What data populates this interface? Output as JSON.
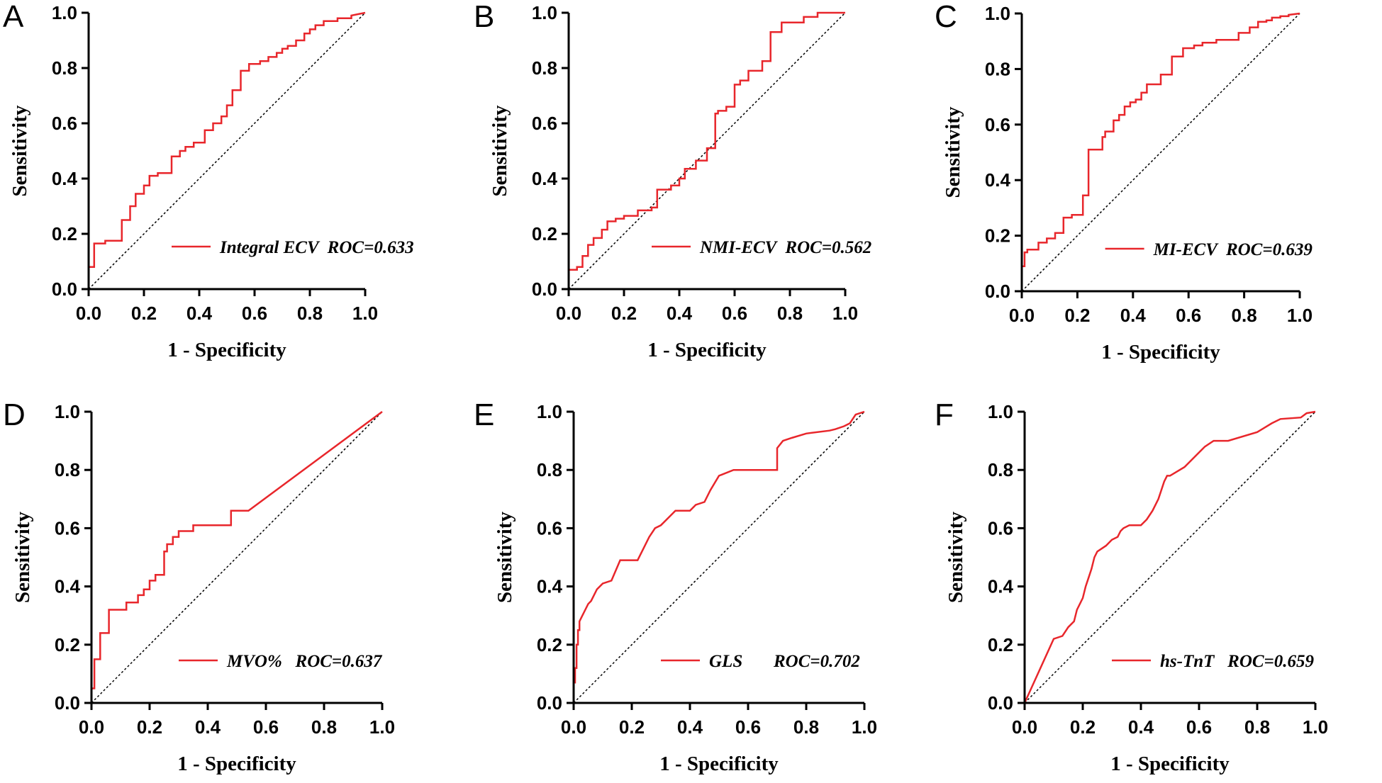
{
  "chart_data": [
    {
      "panel": "A",
      "type": "line",
      "title": "",
      "xlabel": "1 - Specificity",
      "ylabel": "Sensitivity",
      "xlim": [
        0,
        1
      ],
      "ylim": [
        0,
        1
      ],
      "xticks": [
        "0.0",
        "0.2",
        "0.4",
        "0.6",
        "0.8",
        "1.0"
      ],
      "yticks": [
        "0.0",
        "0.2",
        "0.4",
        "0.6",
        "0.8",
        "1.0"
      ],
      "legend": {
        "label": "Integral ECV  ROC=0.633",
        "placement": "bottom-right"
      },
      "series": [
        {
          "name": "Integral ECV",
          "color": "#e8262b",
          "x": [
            0,
            0,
            0.02,
            0.02,
            0.06,
            0.06,
            0.12,
            0.12,
            0.15,
            0.15,
            0.17,
            0.17,
            0.2,
            0.2,
            0.22,
            0.22,
            0.25,
            0.25,
            0.3,
            0.3,
            0.33,
            0.33,
            0.35,
            0.35,
            0.38,
            0.38,
            0.42,
            0.42,
            0.45,
            0.45,
            0.48,
            0.48,
            0.5,
            0.5,
            0.52,
            0.52,
            0.55,
            0.55,
            0.58,
            0.58,
            0.62,
            0.62,
            0.65,
            0.65,
            0.68,
            0.68,
            0.7,
            0.7,
            0.72,
            0.72,
            0.75,
            0.75,
            0.78,
            0.78,
            0.8,
            0.8,
            0.82,
            0.82,
            0.85,
            0.85,
            0.9,
            0.9,
            0.95,
            0.95,
            1.0
          ],
          "y": [
            0,
            0.08,
            0.08,
            0.165,
            0.165,
            0.175,
            0.175,
            0.25,
            0.25,
            0.3,
            0.3,
            0.345,
            0.345,
            0.375,
            0.375,
            0.41,
            0.41,
            0.42,
            0.42,
            0.48,
            0.48,
            0.5,
            0.5,
            0.515,
            0.515,
            0.53,
            0.53,
            0.575,
            0.575,
            0.6,
            0.6,
            0.625,
            0.625,
            0.665,
            0.665,
            0.72,
            0.72,
            0.79,
            0.79,
            0.815,
            0.815,
            0.825,
            0.825,
            0.84,
            0.84,
            0.855,
            0.855,
            0.87,
            0.87,
            0.88,
            0.88,
            0.9,
            0.9,
            0.925,
            0.925,
            0.94,
            0.94,
            0.955,
            0.955,
            0.97,
            0.97,
            0.98,
            0.98,
            0.99,
            1.0
          ]
        }
      ]
    },
    {
      "panel": "B",
      "type": "line",
      "title": "",
      "xlabel": "1 - Specificity",
      "ylabel": "Sensitivity",
      "xlim": [
        0,
        1
      ],
      "ylim": [
        0,
        1
      ],
      "xticks": [
        "0.0",
        "0.2",
        "0.4",
        "0.6",
        "0.8",
        "1.0"
      ],
      "yticks": [
        "0.0",
        "0.2",
        "0.4",
        "0.6",
        "0.8",
        "1.0"
      ],
      "legend": {
        "label": "NMI-ECV  ROC=0.562",
        "placement": "bottom-right"
      },
      "series": [
        {
          "name": "NMI-ECV",
          "color": "#e8262b",
          "x": [
            0,
            0,
            0.03,
            0.03,
            0.05,
            0.05,
            0.07,
            0.07,
            0.09,
            0.09,
            0.12,
            0.12,
            0.14,
            0.14,
            0.17,
            0.17,
            0.2,
            0.2,
            0.25,
            0.25,
            0.3,
            0.3,
            0.32,
            0.32,
            0.37,
            0.37,
            0.4,
            0.4,
            0.42,
            0.42,
            0.46,
            0.46,
            0.5,
            0.5,
            0.53,
            0.53,
            0.54,
            0.54,
            0.57,
            0.57,
            0.6,
            0.6,
            0.62,
            0.62,
            0.65,
            0.65,
            0.7,
            0.7,
            0.73,
            0.73,
            0.77,
            0.77,
            0.85,
            0.85,
            0.9,
            0.9,
            1.0
          ],
          "y": [
            0,
            0.07,
            0.07,
            0.08,
            0.08,
            0.12,
            0.12,
            0.16,
            0.16,
            0.185,
            0.185,
            0.215,
            0.215,
            0.245,
            0.245,
            0.255,
            0.255,
            0.265,
            0.265,
            0.285,
            0.285,
            0.295,
            0.295,
            0.36,
            0.36,
            0.375,
            0.375,
            0.4,
            0.4,
            0.435,
            0.435,
            0.465,
            0.465,
            0.51,
            0.51,
            0.635,
            0.635,
            0.645,
            0.645,
            0.66,
            0.66,
            0.74,
            0.74,
            0.755,
            0.755,
            0.79,
            0.79,
            0.825,
            0.825,
            0.93,
            0.93,
            0.965,
            0.965,
            0.985,
            0.985,
            1.0,
            1.0
          ]
        }
      ]
    },
    {
      "panel": "C",
      "type": "line",
      "title": "",
      "xlabel": "1 - Specificity",
      "ylabel": "Sensitivity",
      "xlim": [
        0,
        1
      ],
      "ylim": [
        0,
        1
      ],
      "xticks": [
        "0.0",
        "0.2",
        "0.4",
        "0.6",
        "0.8",
        "1.0"
      ],
      "yticks": [
        "0.0",
        "0.2",
        "0.4",
        "0.6",
        "0.8",
        "1.0"
      ],
      "legend": {
        "label": "MI-ECV  ROC=0.639",
        "placement": "bottom-right"
      },
      "series": [
        {
          "name": "MI-ECV",
          "color": "#e8262b",
          "x": [
            0,
            0,
            0.01,
            0.01,
            0.02,
            0.02,
            0.06,
            0.06,
            0.09,
            0.09,
            0.12,
            0.12,
            0.15,
            0.15,
            0.18,
            0.18,
            0.22,
            0.22,
            0.24,
            0.24,
            0.29,
            0.29,
            0.3,
            0.3,
            0.33,
            0.33,
            0.35,
            0.35,
            0.37,
            0.37,
            0.39,
            0.39,
            0.41,
            0.41,
            0.43,
            0.43,
            0.45,
            0.45,
            0.5,
            0.5,
            0.54,
            0.54,
            0.58,
            0.58,
            0.62,
            0.62,
            0.65,
            0.65,
            0.7,
            0.7,
            0.78,
            0.78,
            0.82,
            0.82,
            0.85,
            0.85,
            0.88,
            0.88,
            0.9,
            0.9,
            0.93,
            0.93,
            0.96,
            0.96,
            1.0
          ],
          "y": [
            0,
            0.09,
            0.09,
            0.14,
            0.14,
            0.15,
            0.15,
            0.175,
            0.175,
            0.19,
            0.19,
            0.21,
            0.21,
            0.265,
            0.265,
            0.275,
            0.275,
            0.345,
            0.345,
            0.51,
            0.51,
            0.555,
            0.555,
            0.575,
            0.575,
            0.615,
            0.615,
            0.635,
            0.635,
            0.665,
            0.665,
            0.68,
            0.68,
            0.69,
            0.69,
            0.715,
            0.715,
            0.745,
            0.745,
            0.78,
            0.78,
            0.845,
            0.845,
            0.875,
            0.875,
            0.885,
            0.885,
            0.895,
            0.895,
            0.905,
            0.905,
            0.93,
            0.93,
            0.95,
            0.95,
            0.97,
            0.97,
            0.975,
            0.975,
            0.985,
            0.985,
            0.99,
            0.99,
            0.995,
            1.0
          ]
        }
      ]
    },
    {
      "panel": "D",
      "type": "line",
      "title": "",
      "xlabel": "1 - Specificity",
      "ylabel": "Sensitivity",
      "xlim": [
        0,
        1
      ],
      "ylim": [
        0,
        1
      ],
      "xticks": [
        "0.0",
        "0.2",
        "0.4",
        "0.6",
        "0.8",
        "1.0"
      ],
      "yticks": [
        "0.0",
        "0.2",
        "0.4",
        "0.6",
        "0.8",
        "1.0"
      ],
      "legend": {
        "label": "MVO%   ROC=0.637",
        "placement": "bottom-right"
      },
      "series": [
        {
          "name": "MVO%",
          "color": "#e8262b",
          "x": [
            0,
            0,
            0.01,
            0.01,
            0.03,
            0.03,
            0.06,
            0.06,
            0.12,
            0.12,
            0.16,
            0.16,
            0.18,
            0.18,
            0.2,
            0.2,
            0.22,
            0.22,
            0.25,
            0.25,
            0.26,
            0.26,
            0.28,
            0.28,
            0.3,
            0.3,
            0.35,
            0.35,
            0.48,
            0.48,
            0.54,
            1.0
          ],
          "y": [
            0,
            0.05,
            0.05,
            0.15,
            0.15,
            0.24,
            0.24,
            0.32,
            0.32,
            0.345,
            0.345,
            0.37,
            0.37,
            0.39,
            0.39,
            0.42,
            0.42,
            0.44,
            0.44,
            0.52,
            0.52,
            0.545,
            0.545,
            0.57,
            0.57,
            0.59,
            0.59,
            0.61,
            0.61,
            0.66,
            0.66,
            1.0
          ]
        }
      ]
    },
    {
      "panel": "E",
      "type": "line",
      "title": "",
      "xlabel": "1 - Specificity",
      "ylabel": "Sensitivity",
      "xlim": [
        0,
        1
      ],
      "ylim": [
        0,
        1
      ],
      "xticks": [
        "0.0",
        "0.2",
        "0.4",
        "0.6",
        "0.8",
        "1.0"
      ],
      "yticks": [
        "0.0",
        "0.2",
        "0.4",
        "0.6",
        "0.8",
        "1.0"
      ],
      "legend": {
        "label": "GLS       ROC=0.702",
        "placement": "bottom-right"
      },
      "series": [
        {
          "name": "GLS",
          "color": "#e8262b",
          "x": [
            0,
            0,
            0.005,
            0.005,
            0.01,
            0.01,
            0.015,
            0.015,
            0.02,
            0.02,
            0.03,
            0.04,
            0.05,
            0.06,
            0.07,
            0.08,
            0.1,
            0.13,
            0.16,
            0.22,
            0.24,
            0.26,
            0.28,
            0.3,
            0.33,
            0.35,
            0.4,
            0.42,
            0.45,
            0.47,
            0.5,
            0.55,
            0.7,
            0.7,
            0.72,
            0.75,
            0.8,
            0.88,
            0.9,
            0.93,
            0.95,
            0.97,
            1.0
          ],
          "y": [
            0,
            0.07,
            0.07,
            0.12,
            0.12,
            0.2,
            0.2,
            0.25,
            0.25,
            0.28,
            0.3,
            0.32,
            0.34,
            0.35,
            0.37,
            0.39,
            0.41,
            0.42,
            0.49,
            0.49,
            0.53,
            0.57,
            0.6,
            0.61,
            0.64,
            0.66,
            0.66,
            0.68,
            0.69,
            0.73,
            0.78,
            0.8,
            0.8,
            0.875,
            0.9,
            0.91,
            0.925,
            0.935,
            0.94,
            0.95,
            0.96,
            0.99,
            1.0
          ]
        }
      ]
    },
    {
      "panel": "F",
      "type": "line",
      "title": "",
      "xlabel": "1 - Specificity",
      "ylabel": "Sensitivity",
      "xlim": [
        0,
        1
      ],
      "ylim": [
        0,
        1
      ],
      "xticks": [
        "0.0",
        "0.2",
        "0.4",
        "0.6",
        "0.8",
        "1.0"
      ],
      "yticks": [
        "0.0",
        "0.2",
        "0.4",
        "0.6",
        "0.8",
        "1.0"
      ],
      "legend": {
        "label": "hs-TnT   ROC=0.659",
        "placement": "bottom-right"
      },
      "series": [
        {
          "name": "hs-TnT",
          "color": "#e8262b",
          "x": [
            0,
            0.1,
            0.13,
            0.15,
            0.17,
            0.18,
            0.2,
            0.21,
            0.22,
            0.23,
            0.24,
            0.25,
            0.28,
            0.3,
            0.32,
            0.33,
            0.34,
            0.36,
            0.38,
            0.4,
            0.42,
            0.44,
            0.46,
            0.47,
            0.48,
            0.49,
            0.5,
            0.55,
            0.57,
            0.6,
            0.62,
            0.65,
            0.7,
            0.8,
            0.85,
            0.88,
            0.95,
            0.97,
            1.0
          ],
          "y": [
            0,
            0.22,
            0.23,
            0.26,
            0.28,
            0.32,
            0.36,
            0.4,
            0.43,
            0.46,
            0.5,
            0.52,
            0.54,
            0.56,
            0.57,
            0.59,
            0.6,
            0.61,
            0.61,
            0.61,
            0.63,
            0.66,
            0.7,
            0.73,
            0.76,
            0.78,
            0.78,
            0.81,
            0.83,
            0.86,
            0.88,
            0.9,
            0.9,
            0.93,
            0.96,
            0.975,
            0.98,
            0.995,
            1.0
          ]
        }
      ]
    }
  ]
}
